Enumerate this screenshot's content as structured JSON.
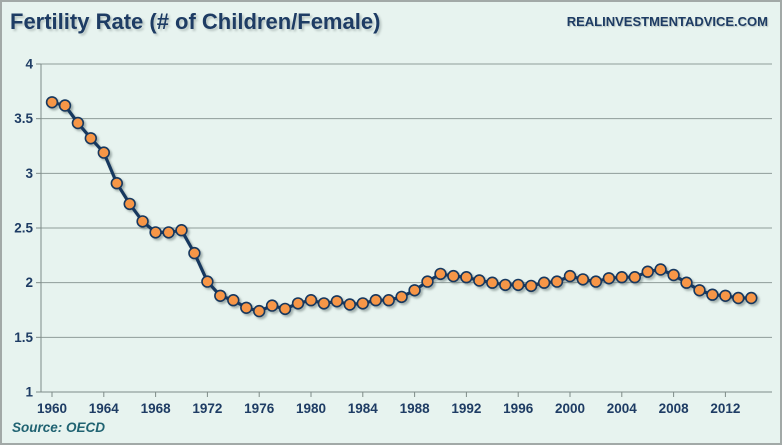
{
  "header": {
    "title": "Fertility Rate (# of Children/Female)",
    "site": "REALINVESTMENTADVICE.COM"
  },
  "footer": {
    "source": "Source: OECD"
  },
  "colors": {
    "background": "#e7f3ef",
    "border": "#a2a9a7",
    "grid": "#8f9c99",
    "axis": "#7e8b88",
    "text": "#1e3c64",
    "line": "#17375e",
    "marker_fill": "#f79646",
    "marker_stroke": "#17375e",
    "source_text": "#206372"
  },
  "chart_data": {
    "type": "line",
    "title": "Fertility Rate (# of Children/Female)",
    "xlabel": "",
    "ylabel": "",
    "legend": "none",
    "grid": "horizontal",
    "ylim": [
      1,
      4
    ],
    "y_ticks": [
      1,
      1.5,
      2,
      2.5,
      3,
      3.5,
      4
    ],
    "x_ticks": [
      1960,
      1964,
      1968,
      1972,
      1976,
      1980,
      1984,
      1988,
      1992,
      1996,
      2000,
      2004,
      2008,
      2012
    ],
    "x": [
      1960,
      1961,
      1962,
      1963,
      1964,
      1965,
      1966,
      1967,
      1968,
      1969,
      1970,
      1971,
      1972,
      1973,
      1974,
      1975,
      1976,
      1977,
      1978,
      1979,
      1980,
      1981,
      1982,
      1983,
      1984,
      1985,
      1986,
      1987,
      1988,
      1989,
      1990,
      1991,
      1992,
      1993,
      1994,
      1995,
      1996,
      1997,
      1998,
      1999,
      2000,
      2001,
      2002,
      2003,
      2004,
      2005,
      2006,
      2007,
      2008,
      2009,
      2010,
      2011,
      2012,
      2013,
      2014
    ],
    "values": [
      3.65,
      3.62,
      3.46,
      3.32,
      3.19,
      2.91,
      2.72,
      2.56,
      2.46,
      2.46,
      2.48,
      2.27,
      2.01,
      1.88,
      1.84,
      1.77,
      1.74,
      1.79,
      1.76,
      1.81,
      1.84,
      1.81,
      1.83,
      1.8,
      1.81,
      1.84,
      1.84,
      1.87,
      1.93,
      2.01,
      2.08,
      2.06,
      2.05,
      2.02,
      2.0,
      1.98,
      1.98,
      1.97,
      2.0,
      2.01,
      2.06,
      2.03,
      2.01,
      2.04,
      2.05,
      2.05,
      2.1,
      2.12,
      2.07,
      2.0,
      1.93,
      1.89,
      1.88,
      1.86,
      1.86
    ]
  }
}
